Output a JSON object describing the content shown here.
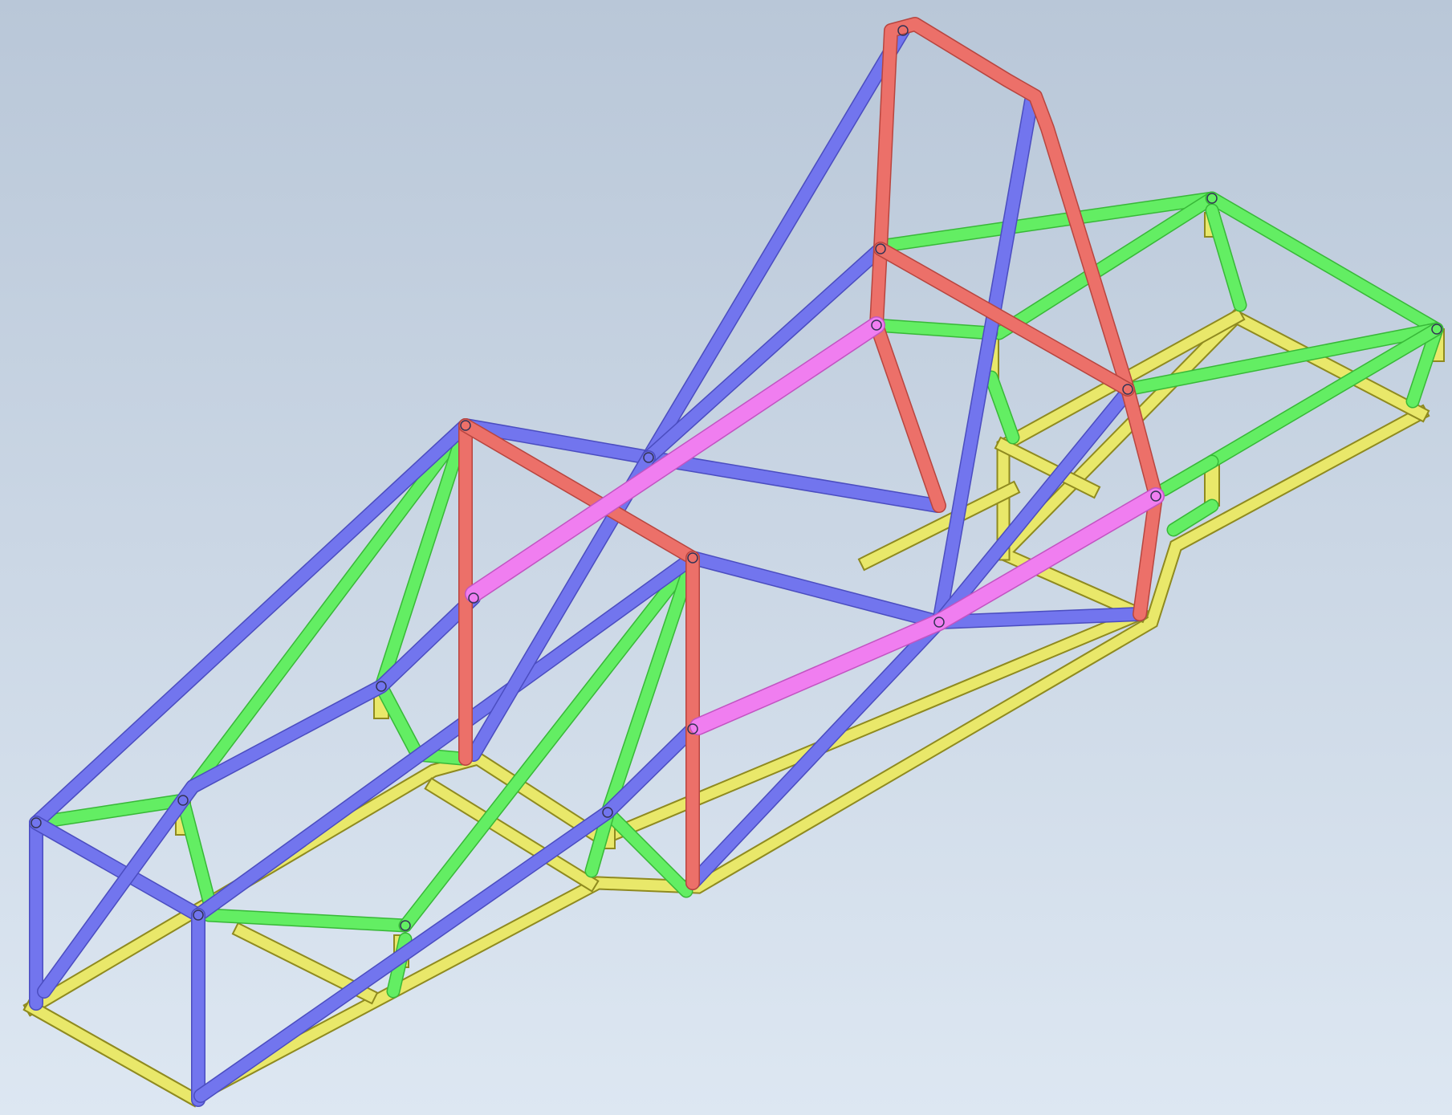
{
  "view": {
    "background_top": "#b9c7d8",
    "background_bottom": "#dde7f2"
  },
  "frame": {
    "groups": [
      {
        "name": "base-rails",
        "color": "#e9e86a",
        "stroke": "#8f8a1f"
      },
      {
        "name": "blue-tubes",
        "color": "#7275ee",
        "stroke": "#4b4dc0"
      },
      {
        "name": "green-tubes",
        "color": "#63ee63",
        "stroke": "#38b838"
      },
      {
        "name": "red-tubes",
        "color": "#ec7069",
        "stroke": "#b8453f"
      },
      {
        "name": "magenta-tubes",
        "color": "#f07ef0",
        "stroke": "#c254c2"
      }
    ]
  }
}
